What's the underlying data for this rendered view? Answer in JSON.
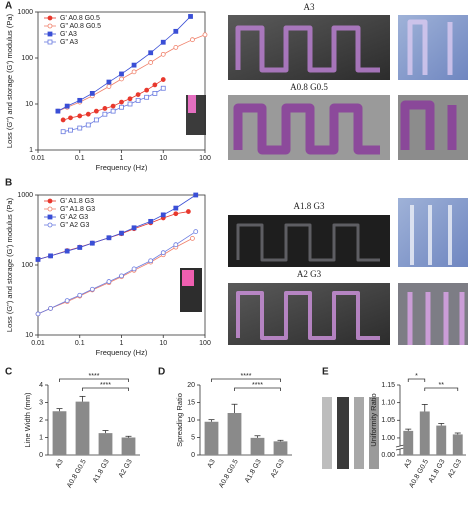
{
  "chart_data": [
    {
      "type": "line",
      "panel": "A",
      "log_x": true,
      "log_y": true,
      "x_label": "Frequency (Hz)",
      "y_label": "Loss (G\") and storage (G') modulus (Pa)",
      "xlim": [
        0.01,
        100
      ],
      "xticks": [
        0.01,
        0.1,
        1,
        10,
        100
      ],
      "ylim": [
        1,
        1000
      ],
      "yticks": [
        1,
        10,
        100,
        1000
      ],
      "legend": "upper left",
      "series": [
        {
          "name": "G' A0.8 G0.5",
          "color": "#e8382d",
          "marker": "circle",
          "filled": true,
          "x": [
            0.04,
            0.06,
            0.1,
            0.16,
            0.25,
            0.4,
            0.63,
            1,
            1.6,
            2.5,
            4,
            6.3,
            10
          ],
          "values": [
            4.5,
            5,
            5.5,
            6,
            7,
            8,
            9,
            11,
            13,
            16,
            20,
            26,
            34
          ]
        },
        {
          "name": "G\" A0.8 G0.5",
          "color": "#f0806a",
          "marker": "circle",
          "filled": false,
          "x": [
            0.03,
            0.05,
            0.1,
            0.2,
            0.5,
            1,
            2,
            5,
            10,
            20,
            50,
            100
          ],
          "values": [
            7,
            8.5,
            11,
            15,
            24,
            35,
            50,
            80,
            120,
            170,
            250,
            320
          ]
        },
        {
          "name": "G' A3",
          "color": "#3a4fd6",
          "marker": "square",
          "filled": true,
          "x": [
            0.03,
            0.05,
            0.1,
            0.2,
            0.5,
            1,
            2,
            5,
            10,
            20,
            45
          ],
          "values": [
            7,
            9,
            12,
            17,
            30,
            45,
            70,
            130,
            220,
            380,
            800
          ]
        },
        {
          "name": "G\" A3",
          "color": "#6a7be0",
          "marker": "square",
          "filled": false,
          "x": [
            0.04,
            0.06,
            0.1,
            0.16,
            0.25,
            0.4,
            0.63,
            1,
            1.6,
            2.5,
            4,
            6.3,
            10
          ],
          "values": [
            2.5,
            2.7,
            3,
            3.5,
            4.5,
            6,
            7,
            8.5,
            10,
            12,
            14,
            17,
            22
          ]
        }
      ]
    },
    {
      "type": "line",
      "panel": "B",
      "log_x": true,
      "log_y": true,
      "x_label": "Frequency (Hz)",
      "y_label": "Loss (G\") and storage (G') modulus (Pa)",
      "xlim": [
        0.01,
        100
      ],
      "xticks": [
        0.01,
        0.1,
        1,
        10,
        100
      ],
      "ylim": [
        10,
        1000
      ],
      "yticks": [
        10,
        100,
        1000
      ],
      "legend": "upper left",
      "series": [
        {
          "name": "G' A1.8 G3",
          "color": "#e8382d",
          "marker": "circle",
          "filled": true,
          "x": [
            0.01,
            0.02,
            0.05,
            0.1,
            0.2,
            0.5,
            1,
            2,
            5,
            10,
            20,
            40
          ],
          "values": [
            120,
            135,
            160,
            180,
            205,
            245,
            280,
            330,
            400,
            470,
            540,
            580
          ]
        },
        {
          "name": "G\" A1.8 G3",
          "color": "#f0806a",
          "marker": "circle",
          "filled": false,
          "x": [
            0.01,
            0.02,
            0.05,
            0.1,
            0.2,
            0.5,
            1,
            2,
            5,
            10,
            20,
            50
          ],
          "values": [
            20,
            24,
            30,
            36,
            44,
            56,
            68,
            84,
            110,
            140,
            180,
            240
          ]
        },
        {
          "name": "G' A2 G3",
          "color": "#3a4fd6",
          "marker": "square",
          "filled": true,
          "x": [
            0.01,
            0.02,
            0.05,
            0.1,
            0.2,
            0.5,
            1,
            2,
            5,
            10,
            20,
            60
          ],
          "values": [
            120,
            135,
            158,
            178,
            205,
            245,
            285,
            340,
            420,
            520,
            650,
            1000
          ]
        },
        {
          "name": "G\" A2 G3",
          "color": "#6a7be0",
          "marker": "circle",
          "filled": false,
          "x": [
            0.01,
            0.02,
            0.05,
            0.1,
            0.2,
            0.5,
            1,
            2,
            5,
            10,
            20,
            60
          ],
          "values": [
            20,
            24,
            31,
            37,
            45,
            58,
            70,
            88,
            115,
            150,
            195,
            300
          ]
        }
      ]
    },
    {
      "type": "bar",
      "panel": "C",
      "y_label": "Line Width (mm)",
      "color": "#8a8a8a",
      "categories": [
        "A3",
        "A0.8 G0.5",
        "A1.8 G3",
        "A2 G3"
      ],
      "values": [
        2.5,
        3.05,
        1.25,
        1.0
      ],
      "errors": [
        0.15,
        0.3,
        0.15,
        0.07
      ],
      "ylim": [
        0,
        4
      ],
      "yticks": [
        0,
        1,
        2,
        3,
        4
      ],
      "annotations": [
        {
          "text": "****",
          "between": [
            "A3",
            "A2 G3"
          ]
        },
        {
          "text": "****",
          "between": [
            "A0.8 G0.5",
            "A2 G3"
          ]
        }
      ]
    },
    {
      "type": "bar",
      "panel": "D",
      "y_label": "Spreading Ratio",
      "color": "#8a8a8a",
      "categories": [
        "A3",
        "A0.8 G0.5",
        "A1.8 G3",
        "A2 G3"
      ],
      "values": [
        9.5,
        12,
        4.9,
        3.9
      ],
      "errors": [
        0.6,
        2.5,
        0.6,
        0.3
      ],
      "ylim": [
        0,
        20
      ],
      "yticks": [
        0,
        5,
        10,
        15,
        20
      ],
      "annotations": [
        {
          "text": "****",
          "between": [
            "A3",
            "A2 G3"
          ]
        },
        {
          "text": "****",
          "between": [
            "A0.8 G0.5",
            "A2 G3"
          ]
        }
      ]
    },
    {
      "type": "bar",
      "panel": "E",
      "y_label": "Uniformity Ratio",
      "color": "#8a8a8a",
      "categories": [
        "A3",
        "A0.8 G0.5",
        "A1.8 G3",
        "A2 G3"
      ],
      "values": [
        1.02,
        1.075,
        1.035,
        1.01
      ],
      "errors": [
        0.005,
        0.02,
        0.006,
        0.004
      ],
      "ylim": [
        0,
        1.15
      ],
      "axis_break": [
        0.02,
        0.98
      ],
      "yticks": [
        {
          "value": 0,
          "label": "0.00"
        },
        {
          "value": 1,
          "label": "1.00"
        },
        {
          "value": 1.05,
          "label": "1.05"
        },
        {
          "value": 1.1,
          "label": "1.10"
        },
        {
          "value": 1.15,
          "label": "1.15"
        }
      ],
      "annotations": [
        {
          "text": "*",
          "between": [
            "A3",
            "A0.8 G0.5"
          ]
        },
        {
          "text": "**",
          "between": [
            "A0.8 G0.5",
            "A2 G3"
          ]
        }
      ]
    }
  ],
  "image_labels": [
    "A3",
    "A0.8 G0.5",
    "A1.8 G3",
    "A2 G3"
  ]
}
